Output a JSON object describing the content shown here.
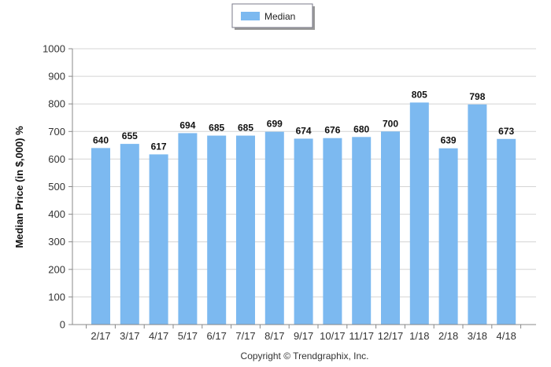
{
  "chart_data": {
    "type": "bar",
    "categories": [
      "2/17",
      "3/17",
      "4/17",
      "5/17",
      "6/17",
      "7/17",
      "8/17",
      "9/17",
      "10/17",
      "11/17",
      "12/17",
      "1/18",
      "2/18",
      "3/18",
      "4/18"
    ],
    "series": [
      {
        "name": "Median",
        "values": [
          640,
          655,
          617,
          694,
          685,
          685,
          699,
          674,
          676,
          680,
          700,
          805,
          639,
          798,
          673
        ]
      }
    ],
    "ylabel": "Median Price (in $,000) %",
    "ylim": [
      0,
      1000
    ],
    "yticks": [
      0,
      100,
      200,
      300,
      400,
      500,
      600,
      700,
      800,
      900,
      1000
    ],
    "grid": true,
    "legend_position": "top-center",
    "bar_color": "#7cb9f0",
    "data_labels": true
  },
  "footer": {
    "copyright": "Copyright © Trendgraphix, Inc."
  }
}
